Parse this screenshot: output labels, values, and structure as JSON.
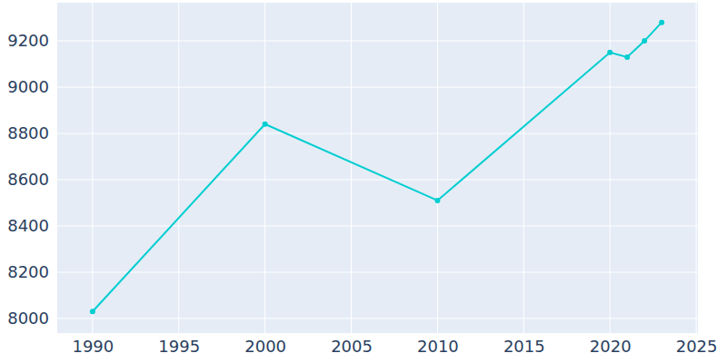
{
  "chart_data": {
    "type": "line",
    "x": [
      1990,
      2000,
      2010,
      2020,
      2021,
      2022,
      2023
    ],
    "values": [
      8030,
      8840,
      8510,
      9150,
      9130,
      9200,
      9280
    ],
    "color": "#00ced1",
    "marker": "circle",
    "xlim": [
      1987.9,
      2025.1
    ],
    "xticks": [
      1990,
      1995,
      2000,
      2005,
      2010,
      2015,
      2020,
      2025
    ],
    "ylim": [
      7937,
      9365
    ],
    "yticks": [
      8000,
      8200,
      8400,
      8600,
      8800,
      9000,
      9200
    ],
    "grid": true
  }
}
